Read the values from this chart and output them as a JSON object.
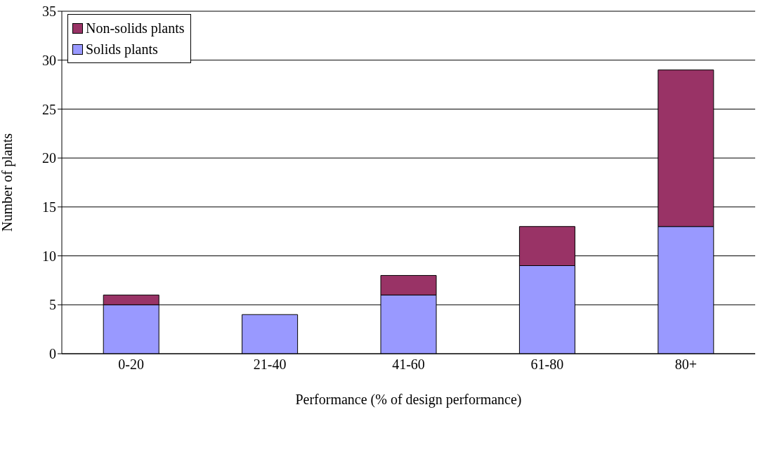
{
  "chart_data": {
    "type": "bar",
    "stacked": true,
    "xlabel": "Performance (% of design performance)",
    "ylabel": "Number of plants",
    "categories": [
      "0-20",
      "21-40",
      "41-60",
      "61-80",
      "80+"
    ],
    "series": [
      {
        "name": "Solids plants",
        "color": "#9999ff",
        "values": [
          5,
          4,
          6,
          9,
          13
        ]
      },
      {
        "name": "Non-solids plants",
        "color": "#993366",
        "values": [
          1,
          0,
          2,
          4,
          16
        ]
      }
    ],
    "ylim": [
      0,
      35
    ],
    "yticks": [
      0,
      5,
      10,
      15,
      20,
      25,
      30,
      35
    ],
    "grid": "y",
    "legend": "top left"
  }
}
